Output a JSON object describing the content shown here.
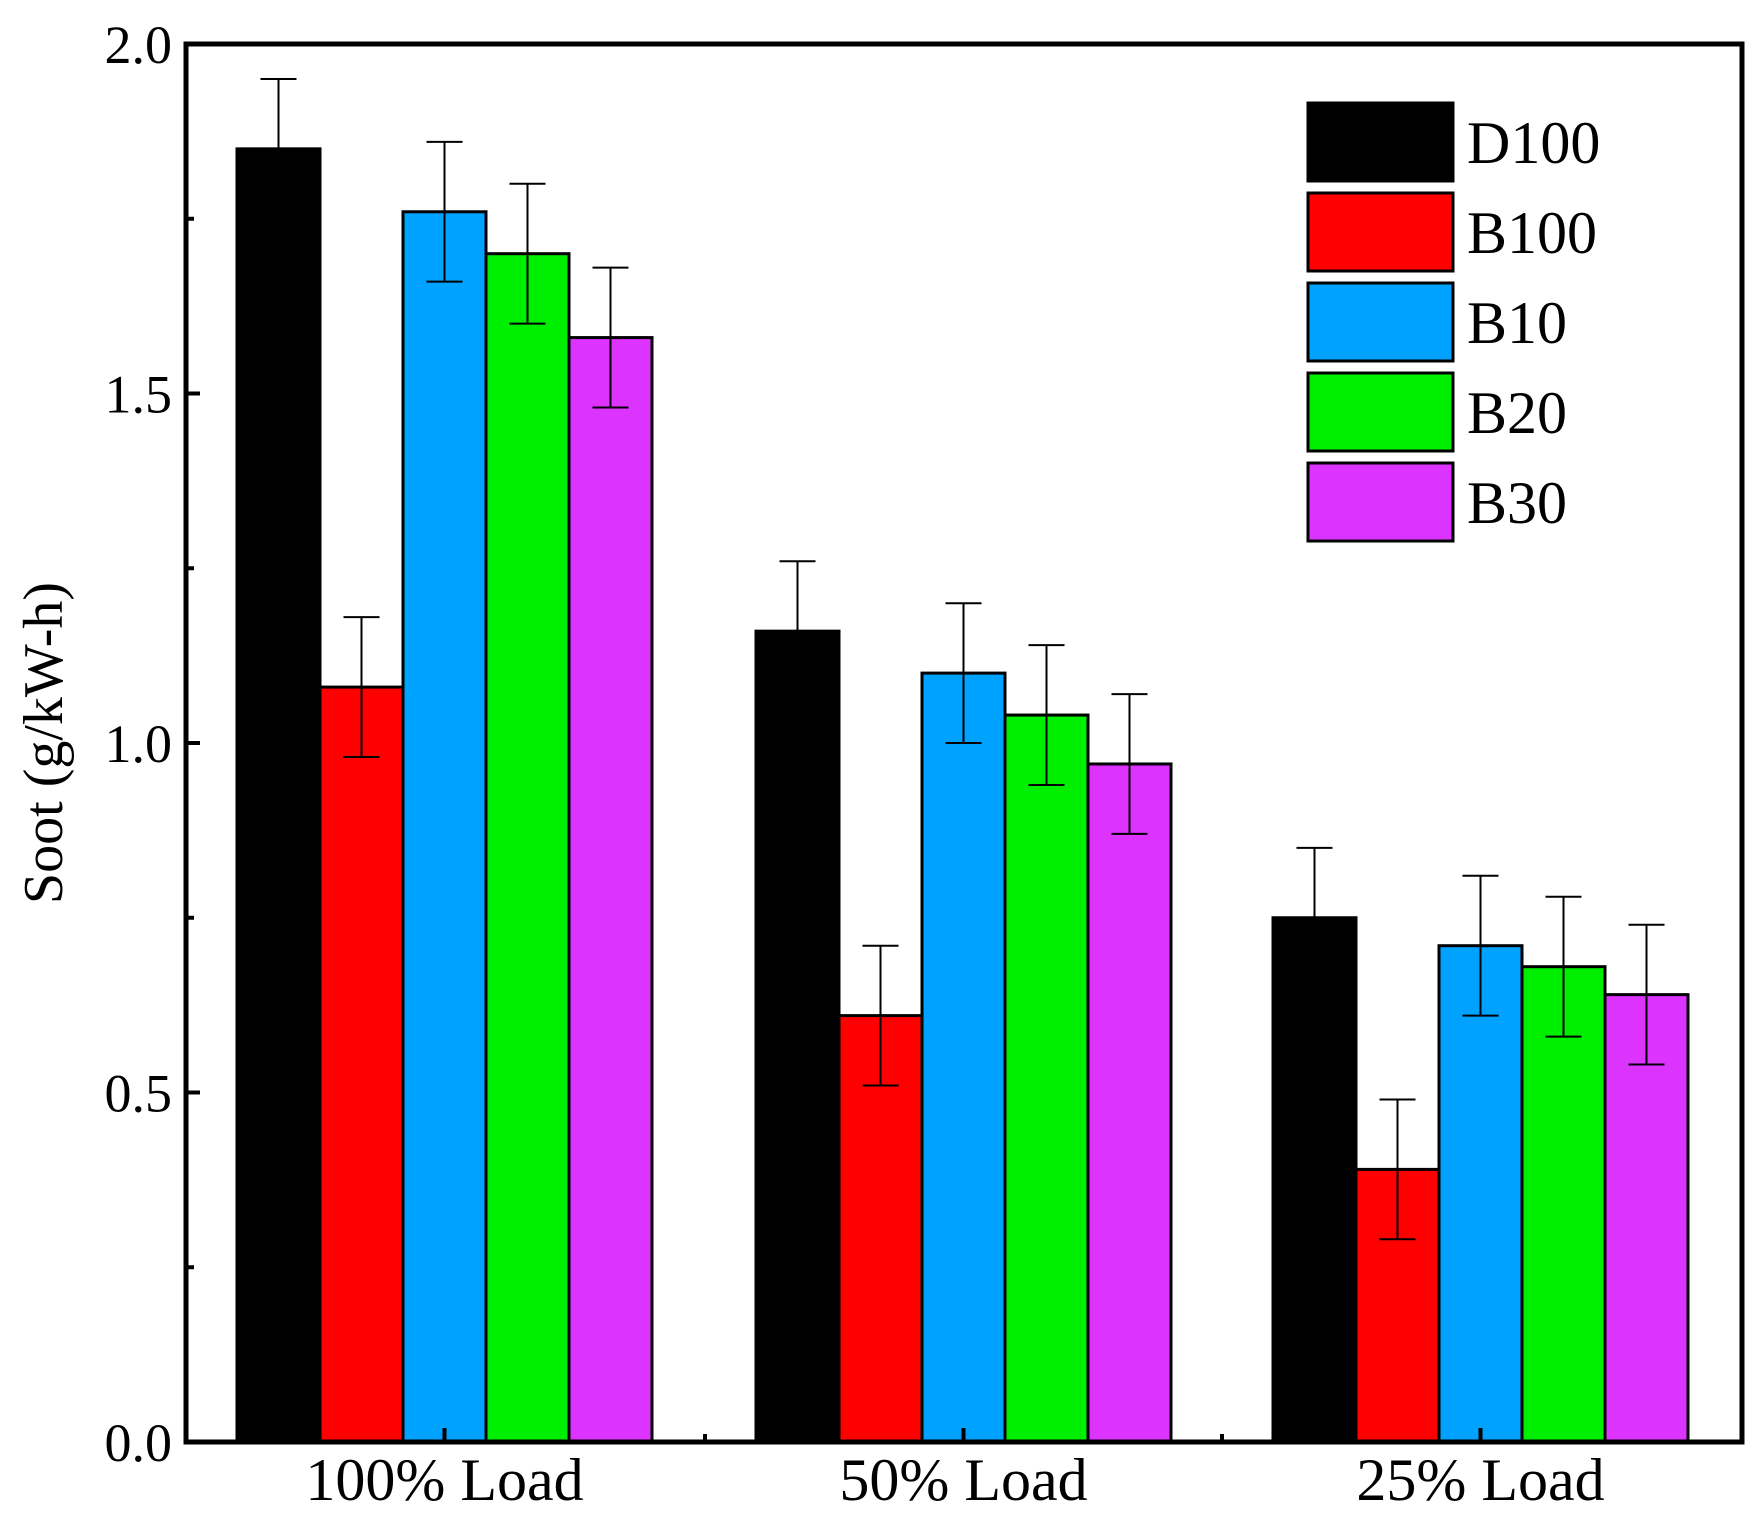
{
  "chart_data": {
    "type": "bar",
    "title": "",
    "xlabel": "",
    "ylabel": "Soot (g/kW-h)",
    "ylim": [
      0.0,
      2.0
    ],
    "yticks": [
      "0.0",
      "0.5",
      "1.0",
      "1.5",
      "2.0"
    ],
    "y_tick_values": [
      0.0,
      0.5,
      1.0,
      1.5,
      2.0
    ],
    "y_minor_tick_values": [
      0.25,
      0.75,
      1.25,
      1.75
    ],
    "categories": [
      "100% Load",
      "50% Load",
      "25% Load"
    ],
    "legend_position": "top-right",
    "series": [
      {
        "name": "D100",
        "color": "#000000",
        "values": [
          1.85,
          1.16,
          0.75
        ],
        "errors": [
          0.1,
          0.1,
          0.1
        ]
      },
      {
        "name": "B100",
        "color": "#ff0000",
        "values": [
          1.08,
          0.61,
          0.39
        ],
        "errors": [
          0.1,
          0.1,
          0.1
        ]
      },
      {
        "name": "B10",
        "color": "#00a2ff",
        "values": [
          1.76,
          1.1,
          0.71
        ],
        "errors": [
          0.1,
          0.1,
          0.1
        ]
      },
      {
        "name": "B20",
        "color": "#00ee00",
        "values": [
          1.7,
          1.04,
          0.68
        ],
        "errors": [
          0.1,
          0.1,
          0.1
        ]
      },
      {
        "name": "B30",
        "color": "#dd33ff",
        "values": [
          1.58,
          0.97,
          0.64
        ],
        "errors": [
          0.1,
          0.1,
          0.1
        ]
      }
    ]
  }
}
